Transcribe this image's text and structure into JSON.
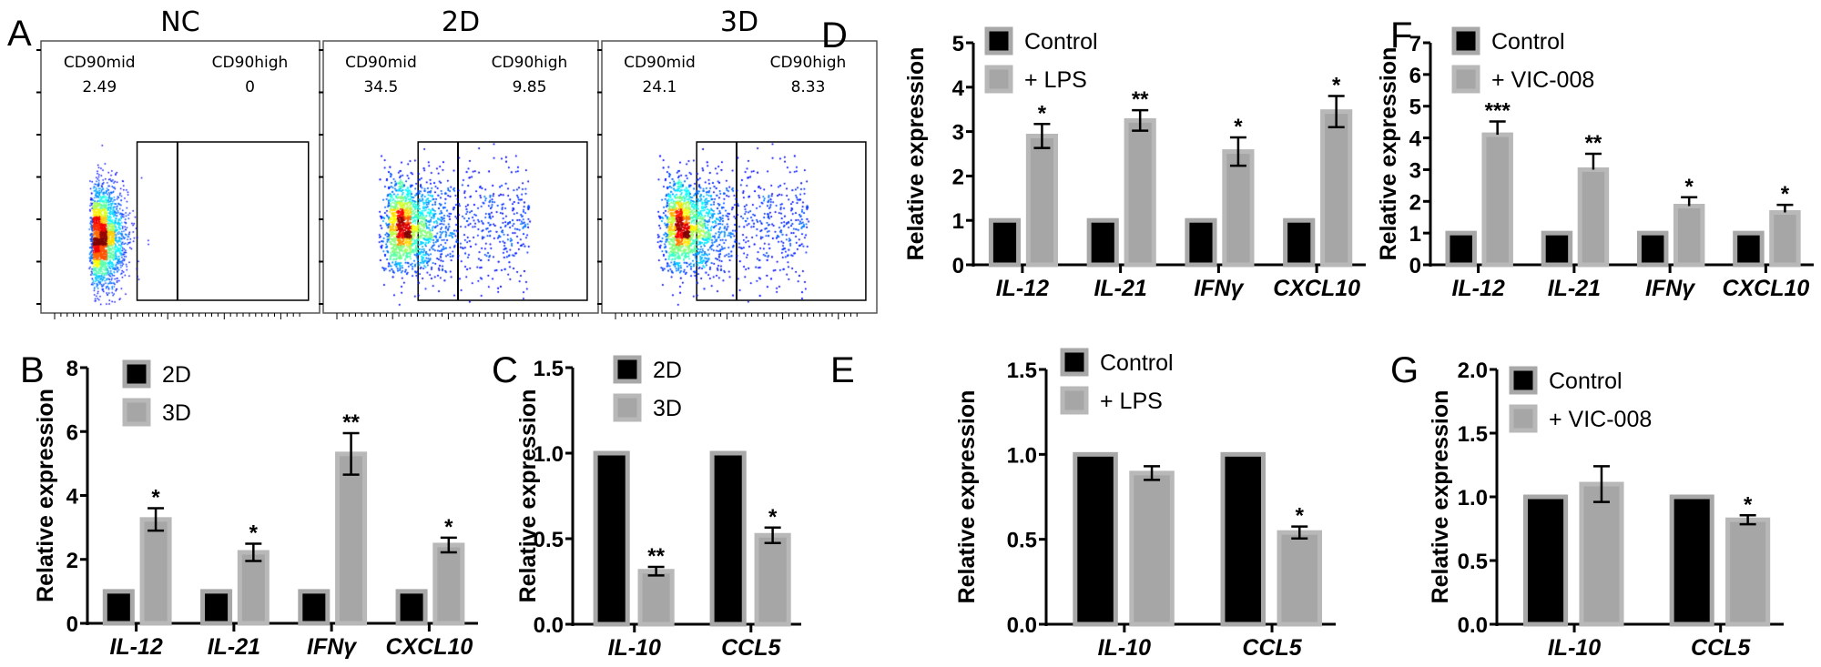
{
  "flow": {
    "panel_label": "A",
    "plots": [
      {
        "title": "NC",
        "gates": [
          {
            "name": "CD90mid",
            "value": "2.49"
          },
          {
            "name": "CD90high",
            "value": "0"
          }
        ]
      },
      {
        "title": "2D",
        "gates": [
          {
            "name": "CD90mid",
            "value": "34.5"
          },
          {
            "name": "CD90high",
            "value": "9.85"
          }
        ]
      },
      {
        "title": "3D",
        "gates": [
          {
            "name": "CD90mid",
            "value": "24.1"
          },
          {
            "name": "CD90high",
            "value": "8.33"
          }
        ]
      }
    ]
  },
  "colors": {
    "control_fill": "#000000",
    "control_border": "#a8a8a8",
    "treatment_fill": "#a6a6a6",
    "treatment_border": "#b8b8b8"
  },
  "chart_data": [
    {
      "panel": "B",
      "type": "bar",
      "ylabel": "Relative expression",
      "ylim": [
        0,
        8
      ],
      "yticks": [
        "0",
        "2",
        "4",
        "6",
        "8"
      ],
      "categories": [
        "IL-12",
        "IL-21",
        "IFNγ",
        "CXCL10"
      ],
      "legend": "top-left",
      "series": [
        {
          "name": "2D",
          "values": [
            1,
            1,
            1,
            1
          ]
        },
        {
          "name": "3D",
          "values": [
            3.25,
            2.22,
            5.3,
            2.45
          ],
          "errors": [
            0.35,
            0.27,
            0.65,
            0.23
          ]
        }
      ],
      "significance": [
        "*",
        "*",
        "**",
        "*"
      ],
      "error_style": "both"
    },
    {
      "panel": "C",
      "type": "bar",
      "ylabel": "Relative expression",
      "ylim": [
        0,
        1.5
      ],
      "yticks": [
        "0.0",
        "0.5",
        "1.0",
        "1.5"
      ],
      "categories": [
        "IL-10",
        "CCL5"
      ],
      "legend": "top-left",
      "series": [
        {
          "name": "2D",
          "values": [
            1,
            1
          ]
        },
        {
          "name": "3D",
          "values": [
            0.31,
            0.52
          ],
          "errors": [
            0.025,
            0.045
          ]
        }
      ],
      "significance": [
        "**",
        "*"
      ],
      "error_style": "both"
    },
    {
      "panel": "D",
      "type": "bar",
      "ylabel": "Relative expression",
      "ylim": [
        0,
        5
      ],
      "yticks": [
        "0",
        "1",
        "2",
        "3",
        "4",
        "5"
      ],
      "categories": [
        "IL-12",
        "IL-21",
        "IFNγ",
        "CXCL10"
      ],
      "legend": "top-left",
      "series": [
        {
          "name": "Control",
          "values": [
            1,
            1,
            1,
            1
          ]
        },
        {
          "name": "+ LPS",
          "values": [
            2.9,
            3.25,
            2.55,
            3.45
          ],
          "errors": [
            0.27,
            0.23,
            0.32,
            0.35
          ]
        }
      ],
      "significance": [
        "*",
        "**",
        "*",
        "*"
      ],
      "error_style": "both"
    },
    {
      "panel": "E",
      "type": "bar",
      "ylabel": "Relative expression",
      "ylim": [
        0,
        1.5
      ],
      "yticks": [
        "0.0",
        "0.5",
        "1.0",
        "1.5"
      ],
      "categories": [
        "IL-10",
        "CCL5"
      ],
      "legend": "top-left",
      "series": [
        {
          "name": "Control",
          "values": [
            1,
            1
          ]
        },
        {
          "name": "+ LPS",
          "values": [
            0.89,
            0.54
          ],
          "errors": [
            0.04,
            0.035
          ]
        }
      ],
      "significance": [
        "",
        "*"
      ],
      "error_style": "both"
    },
    {
      "panel": "F",
      "type": "bar",
      "ylabel": "Relative expression",
      "ylim": [
        0,
        7
      ],
      "yticks": [
        "0",
        "1",
        "2",
        "3",
        "4",
        "5",
        "6",
        "7"
      ],
      "categories": [
        "IL-12",
        "IL-21",
        "IFNγ",
        "CXCL10"
      ],
      "legend": "top-left",
      "series": [
        {
          "name": "Control",
          "values": [
            1,
            1,
            1,
            1
          ]
        },
        {
          "name": "+ VIC-008",
          "values": [
            4.1,
            3.0,
            1.85,
            1.65
          ],
          "errors": [
            0.42,
            0.5,
            0.28,
            0.24
          ]
        }
      ],
      "significance": [
        "***",
        "**",
        "*",
        "*"
      ],
      "error_style": "upper"
    },
    {
      "panel": "G",
      "type": "bar",
      "ylabel": "Relative expression",
      "ylim": [
        0,
        2.0
      ],
      "yticks": [
        "0.0",
        "0.5",
        "1.0",
        "1.5",
        "2.0"
      ],
      "categories": [
        "IL-10",
        "CCL5"
      ],
      "legend": "top-left",
      "series": [
        {
          "name": "Control",
          "values": [
            1,
            1
          ]
        },
        {
          "name": "+ VIC-008",
          "values": [
            1.1,
            0.82
          ],
          "errors": [
            0.14,
            0.035
          ]
        }
      ],
      "significance": [
        "",
        "*"
      ],
      "error_style": "both"
    }
  ]
}
